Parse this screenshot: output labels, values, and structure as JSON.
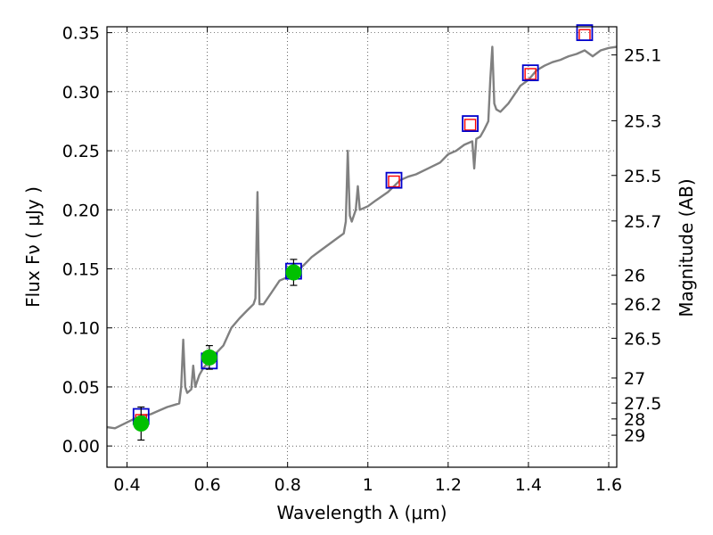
{
  "chart_data": {
    "type": "scatter",
    "xlabel": "Wavelength  λ (μm)",
    "ylabel": "Flux  Fν  ( μJy )",
    "y2label": "Magnitude (AB)",
    "xlim": [
      0.35,
      1.62
    ],
    "ylim": [
      -0.018,
      0.355
    ],
    "grid": true,
    "x_ticks": [
      {
        "value": 0.4,
        "label": "0.4"
      },
      {
        "value": 0.6,
        "label": "0.6"
      },
      {
        "value": 0.8,
        "label": "0.8"
      },
      {
        "value": 1.0,
        "label": "1"
      },
      {
        "value": 1.2,
        "label": "1.2"
      },
      {
        "value": 1.4,
        "label": "1.4"
      },
      {
        "value": 1.6,
        "label": "1.6"
      }
    ],
    "y_ticks": [
      {
        "value": 0.0,
        "label": "0.00"
      },
      {
        "value": 0.05,
        "label": "0.05"
      },
      {
        "value": 0.1,
        "label": "0.10"
      },
      {
        "value": 0.15,
        "label": "0.15"
      },
      {
        "value": 0.2,
        "label": "0.20"
      },
      {
        "value": 0.25,
        "label": "0.25"
      },
      {
        "value": 0.3,
        "label": "0.30"
      },
      {
        "value": 0.35,
        "label": "0.35"
      }
    ],
    "mag_ticks": [
      "25.1",
      "25.3",
      "25.5",
      "25.7",
      "26",
      "26.2",
      "26.5",
      "27",
      "27.5",
      "28",
      "29"
    ],
    "spectrum": {
      "color": "#808080",
      "points": [
        [
          0.35,
          0.016
        ],
        [
          0.37,
          0.015
        ],
        [
          0.4,
          0.02
        ],
        [
          0.43,
          0.025
        ],
        [
          0.46,
          0.027
        ],
        [
          0.48,
          0.03
        ],
        [
          0.5,
          0.033
        ],
        [
          0.52,
          0.035
        ],
        [
          0.53,
          0.036
        ],
        [
          0.535,
          0.05
        ],
        [
          0.54,
          0.09
        ],
        [
          0.545,
          0.05
        ],
        [
          0.55,
          0.045
        ],
        [
          0.56,
          0.048
        ],
        [
          0.565,
          0.068
        ],
        [
          0.57,
          0.05
        ],
        [
          0.58,
          0.06
        ],
        [
          0.59,
          0.066
        ],
        [
          0.6,
          0.07
        ],
        [
          0.62,
          0.078
        ],
        [
          0.64,
          0.085
        ],
        [
          0.66,
          0.1
        ],
        [
          0.68,
          0.108
        ],
        [
          0.7,
          0.115
        ],
        [
          0.715,
          0.12
        ],
        [
          0.72,
          0.125
        ],
        [
          0.725,
          0.215
        ],
        [
          0.73,
          0.12
        ],
        [
          0.74,
          0.12
        ],
        [
          0.76,
          0.13
        ],
        [
          0.78,
          0.14
        ],
        [
          0.8,
          0.143
        ],
        [
          0.82,
          0.147
        ],
        [
          0.84,
          0.153
        ],
        [
          0.86,
          0.16
        ],
        [
          0.88,
          0.165
        ],
        [
          0.9,
          0.17
        ],
        [
          0.92,
          0.175
        ],
        [
          0.94,
          0.18
        ],
        [
          0.945,
          0.19
        ],
        [
          0.95,
          0.25
        ],
        [
          0.955,
          0.195
        ],
        [
          0.96,
          0.19
        ],
        [
          0.97,
          0.2
        ],
        [
          0.975,
          0.22
        ],
        [
          0.98,
          0.2
        ],
        [
          1.0,
          0.203
        ],
        [
          1.02,
          0.208
        ],
        [
          1.05,
          0.215
        ],
        [
          1.08,
          0.225
        ],
        [
          1.1,
          0.228
        ],
        [
          1.12,
          0.23
        ],
        [
          1.15,
          0.235
        ],
        [
          1.18,
          0.24
        ],
        [
          1.2,
          0.247
        ],
        [
          1.22,
          0.25
        ],
        [
          1.24,
          0.255
        ],
        [
          1.26,
          0.258
        ],
        [
          1.265,
          0.235
        ],
        [
          1.27,
          0.26
        ],
        [
          1.28,
          0.262
        ],
        [
          1.29,
          0.268
        ],
        [
          1.3,
          0.275
        ],
        [
          1.305,
          0.31
        ],
        [
          1.31,
          0.338
        ],
        [
          1.315,
          0.29
        ],
        [
          1.32,
          0.285
        ],
        [
          1.33,
          0.283
        ],
        [
          1.35,
          0.29
        ],
        [
          1.37,
          0.3
        ],
        [
          1.38,
          0.305
        ],
        [
          1.4,
          0.31
        ],
        [
          1.42,
          0.318
        ],
        [
          1.44,
          0.322
        ],
        [
          1.46,
          0.325
        ],
        [
          1.48,
          0.327
        ],
        [
          1.5,
          0.33
        ],
        [
          1.52,
          0.332
        ],
        [
          1.54,
          0.335
        ],
        [
          1.56,
          0.33
        ],
        [
          1.58,
          0.335
        ],
        [
          1.6,
          0.337
        ],
        [
          1.62,
          0.338
        ]
      ]
    },
    "model_points": {
      "marker": "square",
      "color": "#ff0000",
      "points": [
        [
          0.435,
          0.022
        ],
        [
          0.605,
          0.075
        ],
        [
          0.815,
          0.146
        ],
        [
          1.065,
          0.224
        ],
        [
          1.255,
          0.272
        ],
        [
          1.405,
          0.315
        ],
        [
          1.54,
          0.348
        ]
      ]
    },
    "filter_points": {
      "marker": "square",
      "color": "#0000cc",
      "points": [
        [
          0.435,
          0.025
        ],
        [
          0.605,
          0.072
        ],
        [
          0.815,
          0.148
        ],
        [
          1.065,
          0.225
        ],
        [
          1.255,
          0.273
        ],
        [
          1.405,
          0.316
        ],
        [
          1.54,
          0.35
        ]
      ]
    },
    "observed": {
      "marker": "circle",
      "color": "#00c000",
      "points": [
        {
          "x": 0.435,
          "y": 0.019,
          "err": 0.014
        },
        {
          "x": 0.605,
          "y": 0.075,
          "err": 0.01
        },
        {
          "x": 0.815,
          "y": 0.147,
          "err": 0.011
        }
      ]
    }
  }
}
